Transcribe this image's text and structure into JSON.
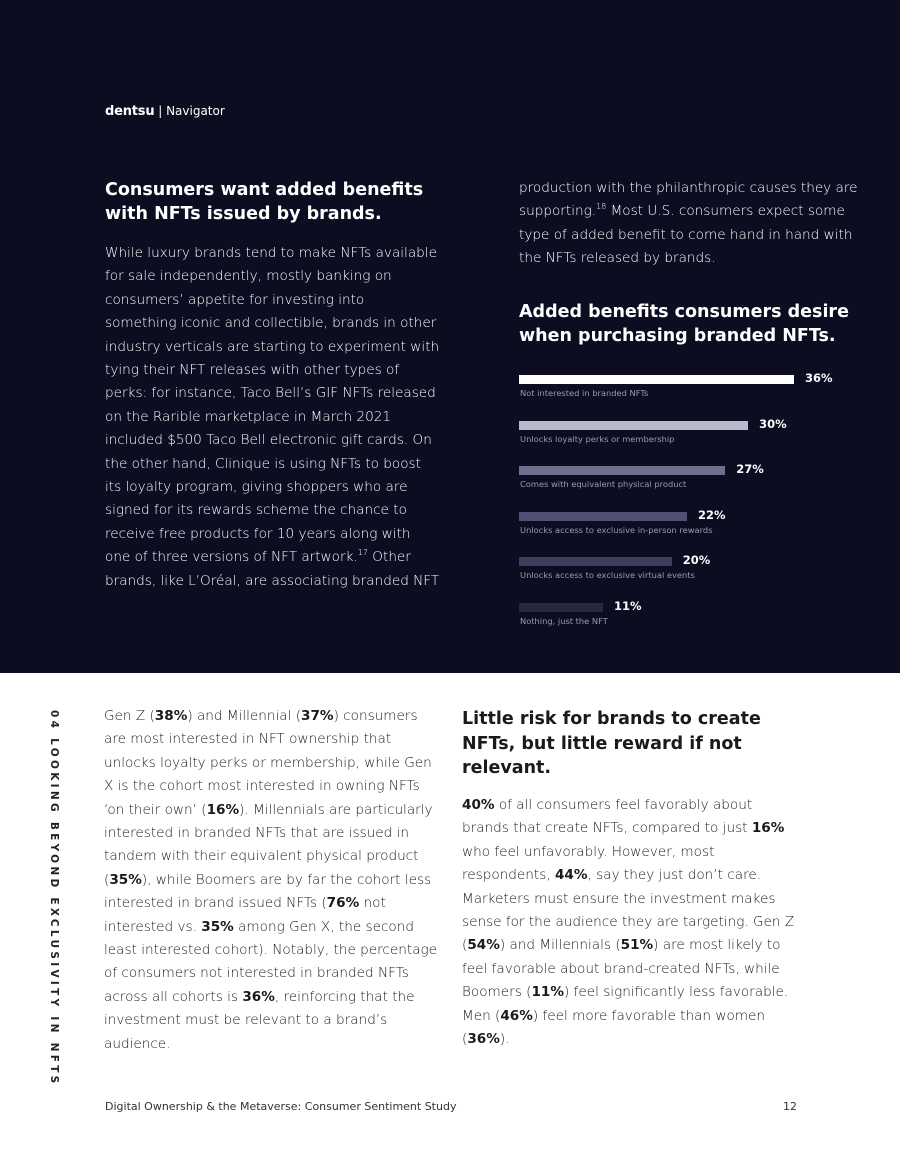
{
  "header": {
    "brand": "dentsu",
    "product": "Navigator"
  },
  "section1": {
    "heading": "Consumers want added benefits with NFTs issued by brands.",
    "body": [
      {
        "t": "While luxury brands tend to make NFTs available for sale independently, mostly banking on consumers’ appetite for investing into something iconic and collectible, brands in other industry verticals are starting to experiment with tying their NFT releases with other types of perks: for instance, Taco Bell’s GIF NFTs released on the Rarible marketplace in March 2021 included $500 Taco Bell electronic gift cards. On the other hand, Clinique is using NFTs to boost its loyalty program, giving shoppers who are signed for its rewards scheme the chance to receive free products for 10 years along with one of three versions of NFT artwork."
      },
      {
        "t": "17",
        "s": 1
      },
      {
        "t": " Other brands, like L’Oréal, are associating branded NFT"
      }
    ],
    "body_cont": [
      {
        "t": "production with the philanthropic causes they are supporting."
      },
      {
        "t": "18",
        "s": 1
      },
      {
        "t": " Most U.S. consumers expect some type of added benefit to come hand in hand with the NFTs released by brands."
      }
    ]
  },
  "chart_heading": "Added benefits consumers desire when purchasing branded NFTs.",
  "chart_data": {
    "type": "bar",
    "orientation": "horizontal",
    "title": "Added benefits consumers desire when purchasing branded NFTs.",
    "categories": [
      "Not interested in branded NFTs",
      "Unlocks loyalty perks or membership",
      "Comes with equivalent physical product",
      "Unlocks access to exclusive in-person rewards",
      "Unlocks access to exclusive virtual events",
      "Nothing, just the NFT"
    ],
    "values": [
      36,
      30,
      27,
      22,
      20,
      11
    ],
    "labels": [
      "36%",
      "30%",
      "27%",
      "22%",
      "20%",
      "11%"
    ],
    "colors": [
      "#ffffff",
      "#b9bacb",
      "#6f7090",
      "#505172",
      "#3d3e5d",
      "#272842"
    ],
    "unit": "%",
    "grid": false
  },
  "side_label": "04 LOOKING BEYOND EXCLUSIVITY IN NFTS",
  "section2": {
    "body": [
      {
        "t": "Gen Z ("
      },
      {
        "t": "38%",
        "b": 1
      },
      {
        "t": ") and Millennial ("
      },
      {
        "t": "37%",
        "b": 1
      },
      {
        "t": ") consumers are most interested in NFT ownership that unlocks loyalty perks or membership, while Gen X is the cohort most interested in owning NFTs ‘on their own’ ("
      },
      {
        "t": "16%",
        "b": 1
      },
      {
        "t": "). Millennials are particularly interested in branded NFTs that are issued in tandem with their equivalent physical product ("
      },
      {
        "t": "35%",
        "b": 1
      },
      {
        "t": "), while Boomers are by far the cohort less interested in brand issued NFTs ("
      },
      {
        "t": "76%",
        "b": 1
      },
      {
        "t": " not interested vs. "
      },
      {
        "t": "35%",
        "b": 1
      },
      {
        "t": " among Gen X, the second least interested cohort). Notably, the percentage of consumers not interested in branded NFTs across all cohorts is "
      },
      {
        "t": "36%",
        "b": 1
      },
      {
        "t": ", reinforcing that the investment must be relevant to a brand’s audience."
      }
    ]
  },
  "section3": {
    "heading": "Little risk for brands to create NFTs, but little reward if not relevant.",
    "body": [
      {
        "t": "40%",
        "b": 1
      },
      {
        "t": " of all consumers feel favorably about brands that create NFTs, compared to just "
      },
      {
        "t": "16%",
        "b": 1
      },
      {
        "t": " who feel unfavorably. However, most respondents, "
      },
      {
        "t": "44%",
        "b": 1
      },
      {
        "t": ", say they just don’t care. Marketers must ensure the investment makes sense for the audience they are targeting. Gen Z ("
      },
      {
        "t": "54%",
        "b": 1
      },
      {
        "t": ") and Millennials ("
      },
      {
        "t": "51%",
        "b": 1
      },
      {
        "t": ") are most likely to feel favorable about brand-created NFTs, while Boomers ("
      },
      {
        "t": "11%",
        "b": 1
      },
      {
        "t": ") feel significantly less favorable. Men ("
      },
      {
        "t": "46%",
        "b": 1
      },
      {
        "t": ") feel more favorable than women ("
      },
      {
        "t": "36%",
        "b": 1
      },
      {
        "t": ")."
      }
    ]
  },
  "footer": {
    "title": "Digital Ownership & the Metaverse: Consumer Sentiment Study",
    "page": "12"
  }
}
